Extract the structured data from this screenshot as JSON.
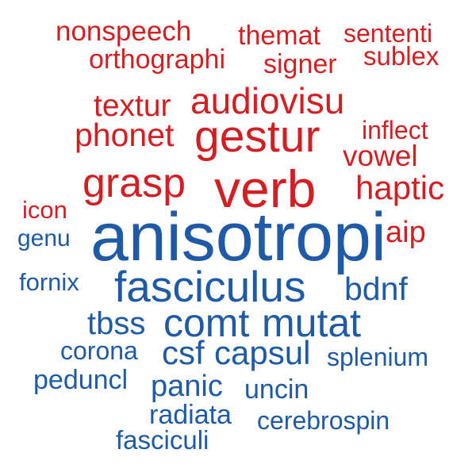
{
  "palette": {
    "group_a": "#d11f24",
    "group_b": "#1f5aa6",
    "background": "#ffffff"
  },
  "words": {
    "nonspeech": "nonspeech",
    "themat": "themat",
    "sententi": "sententi",
    "orthographi": "orthographi",
    "signer": "signer",
    "sublex": "sublex",
    "textur": "textur",
    "audiovisu": "audiovisu",
    "inflect": "inflect",
    "phonet": "phonet",
    "gestur": "gestur",
    "vowel": "vowel",
    "grasp": "grasp",
    "verb": "verb",
    "haptic": "haptic",
    "icon": "icon",
    "aip": "aip",
    "genu": "genu",
    "anisotropi": "anisotropi",
    "fornix": "fornix",
    "fasciculus": "fasciculus",
    "bdnf": "bdnf",
    "tbss": "tbss",
    "comt": "comt",
    "mutat": "mutat",
    "corona": "corona",
    "csf": "csf",
    "capsul": "capsul",
    "splenium": "splenium",
    "peduncl": "peduncl",
    "panic": "panic",
    "uncin": "uncin",
    "radiata": "radiata",
    "cerebrospin": "cerebrospin",
    "fasciculi": "fasciculi"
  }
}
